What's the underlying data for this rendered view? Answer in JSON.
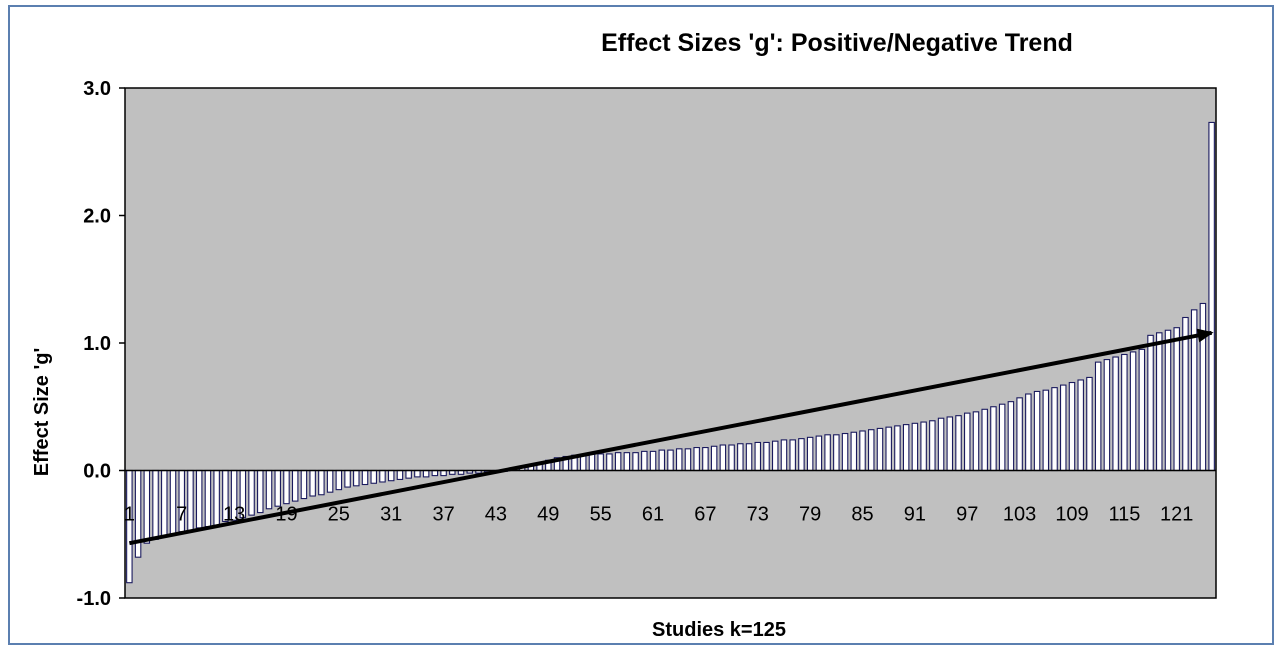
{
  "chart_data": {
    "type": "bar",
    "title": "Effect Sizes 'g': Positive/Negative Trend",
    "xlabel": "Studies  k=125",
    "ylabel": "Effect  Size  'g'",
    "ylim": [
      -1.0,
      3.0
    ],
    "yticks": [
      "3.0",
      "2.0",
      "1.0",
      "0.0",
      "-1.0"
    ],
    "x_tick_labels": [
      "1",
      "7",
      "13",
      "19",
      "25",
      "31",
      "37",
      "43",
      "49",
      "55",
      "61",
      "67",
      "73",
      "79",
      "85",
      "91",
      "97",
      "103",
      "109",
      "115",
      "121"
    ],
    "k": 125,
    "values": [
      -0.88,
      -0.68,
      -0.57,
      -0.54,
      -0.52,
      -0.5,
      -0.48,
      -0.47,
      -0.45,
      -0.44,
      -0.43,
      -0.4,
      -0.39,
      -0.37,
      -0.35,
      -0.33,
      -0.3,
      -0.28,
      -0.26,
      -0.24,
      -0.22,
      -0.2,
      -0.19,
      -0.17,
      -0.15,
      -0.13,
      -0.12,
      -0.11,
      -0.1,
      -0.09,
      -0.08,
      -0.07,
      -0.06,
      -0.05,
      -0.05,
      -0.04,
      -0.04,
      -0.03,
      -0.03,
      -0.02,
      -0.02,
      -0.01,
      -0.01,
      0.0,
      0.01,
      0.02,
      0.04,
      0.06,
      0.08,
      0.1,
      0.11,
      0.12,
      0.12,
      0.13,
      0.13,
      0.13,
      0.14,
      0.14,
      0.14,
      0.15,
      0.15,
      0.16,
      0.16,
      0.17,
      0.17,
      0.18,
      0.18,
      0.19,
      0.2,
      0.2,
      0.21,
      0.21,
      0.22,
      0.22,
      0.23,
      0.24,
      0.24,
      0.25,
      0.26,
      0.27,
      0.28,
      0.28,
      0.29,
      0.3,
      0.31,
      0.32,
      0.33,
      0.34,
      0.35,
      0.36,
      0.37,
      0.38,
      0.39,
      0.41,
      0.42,
      0.43,
      0.45,
      0.46,
      0.48,
      0.5,
      0.52,
      0.54,
      0.57,
      0.6,
      0.62,
      0.63,
      0.65,
      0.67,
      0.69,
      0.71,
      0.73,
      0.85,
      0.87,
      0.89,
      0.91,
      0.93,
      0.95,
      1.06,
      1.08,
      1.1,
      1.12,
      1.2,
      1.26,
      1.31,
      2.73
    ],
    "trendline": {
      "x_start": 1,
      "y_start": -0.57,
      "x_end": 125,
      "y_end": 1.08
    },
    "colors": {
      "plot_bg": "#c0c0c0",
      "bar_fill": "#ffffff",
      "bar_stroke": "#1a1a5e",
      "trend": "#000000",
      "frame": "#5b7fb0"
    },
    "grid": false,
    "legend": "none"
  }
}
